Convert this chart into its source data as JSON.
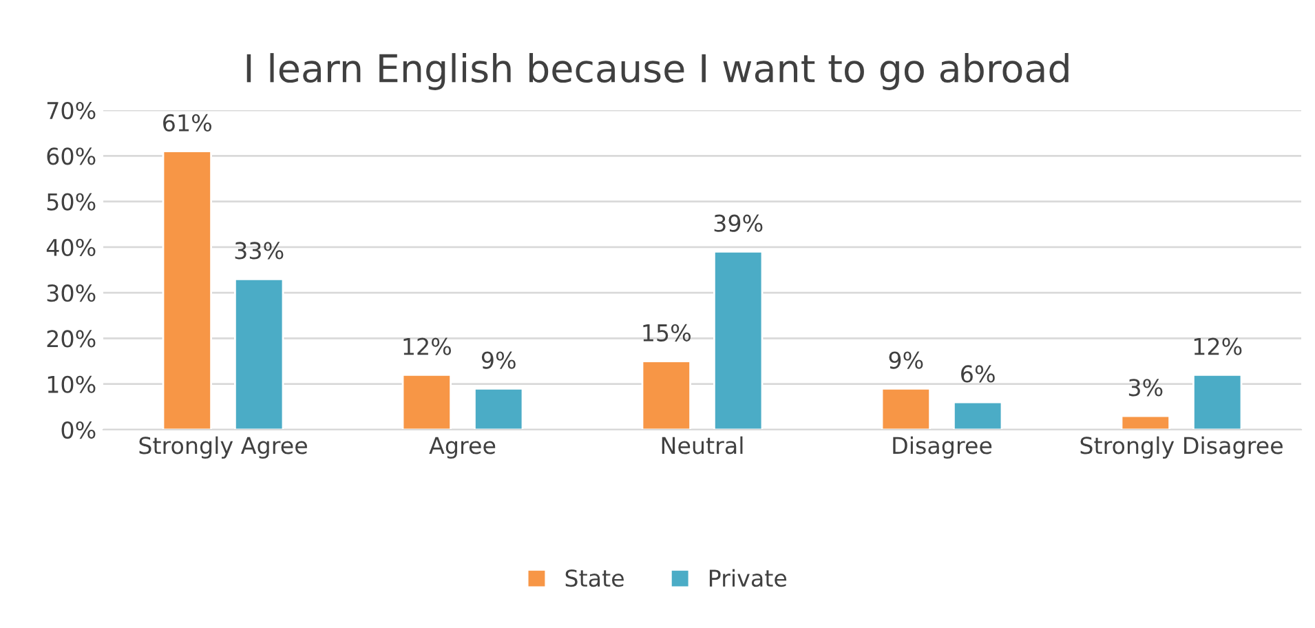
{
  "chart_data": {
    "type": "bar",
    "title": "I learn English because I want to go abroad",
    "categories": [
      "Strongly Agree",
      "Agree",
      "Neutral",
      "Disagree",
      "Strongly Disagree"
    ],
    "series": [
      {
        "name": "State",
        "color": "#f79646",
        "values": [
          61,
          12,
          15,
          9,
          3
        ],
        "value_labels": [
          "61%",
          "12%",
          "15%",
          "9%",
          "3%"
        ]
      },
      {
        "name": "Private",
        "color": "#4bacc6",
        "values": [
          33,
          9,
          39,
          6,
          12
        ],
        "value_labels": [
          "33%",
          "9%",
          "39%",
          "6%",
          "12%"
        ]
      }
    ],
    "ylim": [
      0,
      70
    ],
    "yticks": [
      {
        "value": 0,
        "label": "0%"
      },
      {
        "value": 10,
        "label": "10%"
      },
      {
        "value": 20,
        "label": "20%"
      },
      {
        "value": 30,
        "label": "30%"
      },
      {
        "value": 40,
        "label": "40%"
      },
      {
        "value": 50,
        "label": "50%"
      },
      {
        "value": 60,
        "label": "60%"
      },
      {
        "value": 70,
        "label": "70%"
      }
    ],
    "grid": "y",
    "legend": "bottom"
  }
}
